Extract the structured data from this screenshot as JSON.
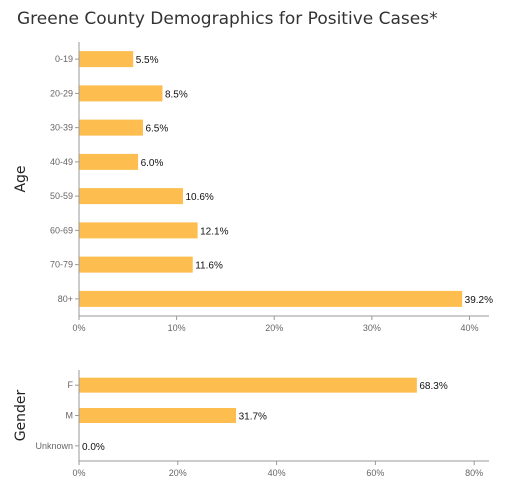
{
  "title": "Greene County Demographics for Positive Cases*",
  "colors": {
    "bar": "#FDBE4F",
    "axis": "#999999"
  },
  "chart_data": [
    {
      "type": "bar",
      "orientation": "horizontal",
      "ylabel": "Age",
      "categories": [
        "0-19",
        "20-29",
        "30-39",
        "40-49",
        "50-59",
        "60-69",
        "70-79",
        "80+"
      ],
      "values": [
        5.5,
        8.5,
        6.5,
        6.0,
        10.6,
        12.1,
        11.6,
        39.2
      ],
      "value_labels": [
        "5.5%",
        "8.5%",
        "6.5%",
        "6.0%",
        "10.6%",
        "12.1%",
        "11.6%",
        "39.2%"
      ],
      "xlim": [
        0,
        42
      ],
      "xticks": [
        0,
        10,
        20,
        30,
        40
      ],
      "xtick_labels": [
        "0%",
        "10%",
        "20%",
        "30%",
        "40%"
      ]
    },
    {
      "type": "bar",
      "orientation": "horizontal",
      "ylabel": "Gender",
      "categories": [
        "F",
        "M",
        "Unknown"
      ],
      "values": [
        68.3,
        31.7,
        0.0
      ],
      "value_labels": [
        "68.3%",
        "31.7%",
        "0.0%"
      ],
      "xlim": [
        0,
        83
      ],
      "xticks": [
        0,
        20,
        40,
        60,
        80
      ],
      "xtick_labels": [
        "0%",
        "20%",
        "40%",
        "60%",
        "80%"
      ]
    }
  ]
}
